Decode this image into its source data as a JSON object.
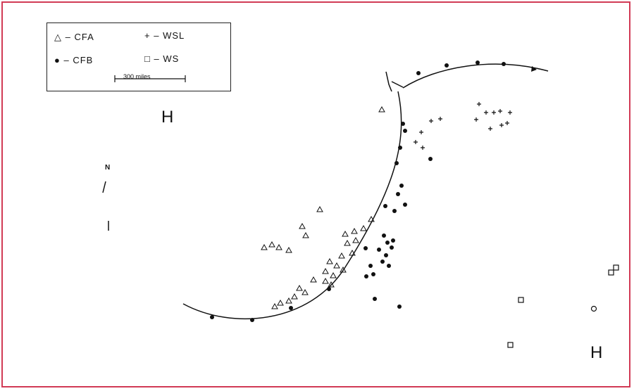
{
  "legend": {
    "items": [
      {
        "symbol": "triangle",
        "label": "CFA"
      },
      {
        "symbol": "cross",
        "label": "WSL"
      },
      {
        "symbol": "filled-circle",
        "label": "CFB"
      },
      {
        "symbol": "square",
        "label": "WS"
      }
    ],
    "scale_label": "300 miles"
  },
  "pressure_labels": [
    "H",
    "H"
  ],
  "north_label": "N",
  "colors": {
    "frame": "#d13a55",
    "ink": "#111111"
  }
}
